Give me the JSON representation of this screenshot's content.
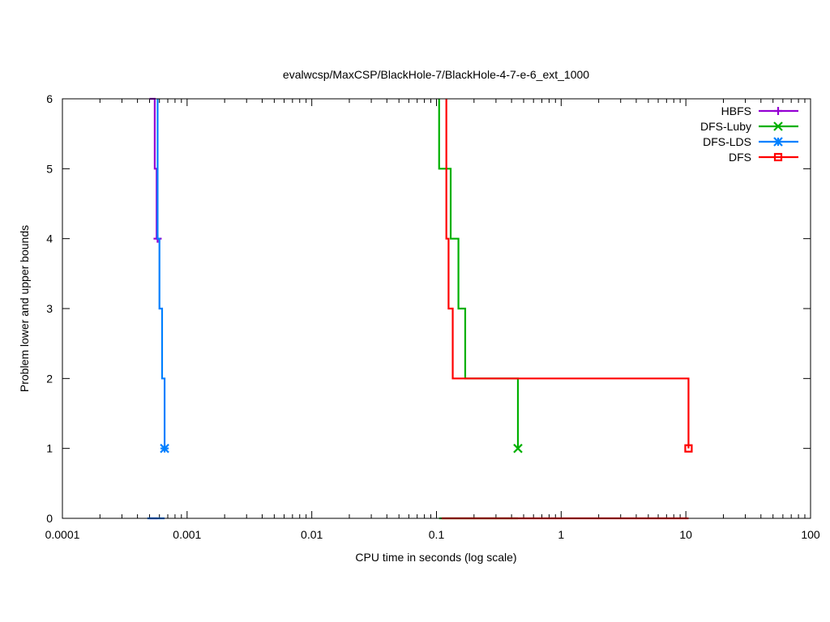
{
  "chart_data": {
    "type": "line",
    "title": "evalwcsp/MaxCSP/BlackHole-7/BlackHole-4-7-e-6_ext_1000",
    "xlabel": "CPU time in seconds (log scale)",
    "ylabel": "Problem lower and upper bounds",
    "xscale": "log",
    "xlim": [
      0.0001,
      100
    ],
    "ylim": [
      0,
      6
    ],
    "grid": false,
    "legend_position": "top-right",
    "x_ticks": [
      {
        "value": 0.0001,
        "label": "0.0001"
      },
      {
        "value": 0.001,
        "label": "0.001"
      },
      {
        "value": 0.01,
        "label": "0.01"
      },
      {
        "value": 0.1,
        "label": "0.1"
      },
      {
        "value": 1,
        "label": "1"
      },
      {
        "value": 10,
        "label": "10"
      },
      {
        "value": 100,
        "label": "100"
      }
    ],
    "y_ticks": [
      {
        "value": 0,
        "label": "0"
      },
      {
        "value": 1,
        "label": "1"
      },
      {
        "value": 2,
        "label": "2"
      },
      {
        "value": 3,
        "label": "3"
      },
      {
        "value": 4,
        "label": "4"
      },
      {
        "value": 5,
        "label": "5"
      },
      {
        "value": 6,
        "label": "6"
      }
    ],
    "series": [
      {
        "name": "HBFS",
        "color": "#9400d3",
        "marker": "plus",
        "upper": [
          [
            0.0005,
            6
          ],
          [
            0.00055,
            6
          ],
          [
            0.00055,
            5
          ],
          [
            0.00057,
            5
          ],
          [
            0.00057,
            4
          ],
          [
            0.00058,
            4
          ]
        ],
        "lower": [
          [
            0.0005,
            0
          ],
          [
            0.00058,
            0
          ]
        ],
        "final_point": [
          0.00058,
          4
        ]
      },
      {
        "name": "DFS-Luby",
        "color": "#00b000",
        "marker": "x",
        "upper": [
          [
            0.105,
            6
          ],
          [
            0.105,
            5
          ],
          [
            0.13,
            5
          ],
          [
            0.13,
            4
          ],
          [
            0.15,
            4
          ],
          [
            0.15,
            3
          ],
          [
            0.17,
            3
          ],
          [
            0.17,
            2
          ],
          [
            0.45,
            2
          ],
          [
            0.45,
            1
          ]
        ],
        "lower": [
          [
            0.105,
            0
          ],
          [
            0.45,
            0
          ]
        ],
        "final_point": [
          0.45,
          1
        ]
      },
      {
        "name": "DFS-LDS",
        "color": "#0080ff",
        "marker": "star",
        "upper": [
          [
            0.00058,
            6
          ],
          [
            0.00058,
            4
          ],
          [
            0.0006,
            4
          ],
          [
            0.0006,
            3
          ],
          [
            0.00063,
            3
          ],
          [
            0.00063,
            2
          ],
          [
            0.00066,
            2
          ],
          [
            0.00066,
            1
          ]
        ],
        "lower": [
          [
            0.00048,
            0
          ],
          [
            0.00066,
            0
          ]
        ],
        "final_point": [
          0.00066,
          1
        ]
      },
      {
        "name": "DFS",
        "color": "#ff0000",
        "marker": "square",
        "upper": [
          [
            0.12,
            6
          ],
          [
            0.12,
            4
          ],
          [
            0.125,
            4
          ],
          [
            0.125,
            3
          ],
          [
            0.135,
            3
          ],
          [
            0.135,
            2
          ],
          [
            10.5,
            2
          ],
          [
            10.5,
            1
          ]
        ],
        "lower": [
          [
            0.11,
            0
          ],
          [
            10.5,
            0
          ]
        ],
        "final_point": [
          10.5,
          1
        ]
      }
    ]
  }
}
